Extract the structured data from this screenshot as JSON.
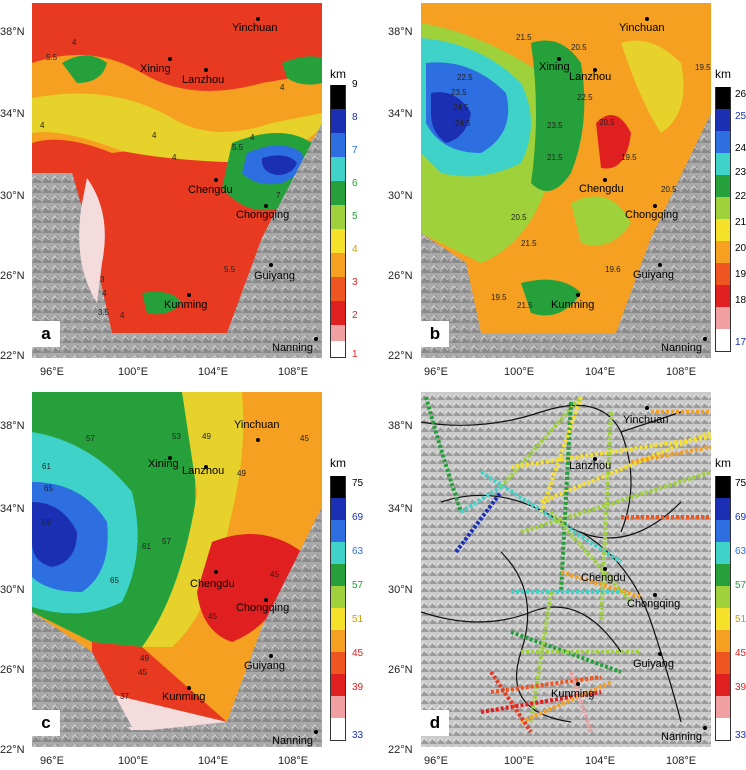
{
  "lat_labels": [
    "38°N",
    "34°N",
    "30°N",
    "26°N",
    "22°N"
  ],
  "lon_labels": [
    "96°E",
    "100°E",
    "104°E",
    "108°E"
  ],
  "colors": {
    "relief_light": "#c8c8c8",
    "relief_dark": "#6e6e6e",
    "white": "#ffffff"
  },
  "panels": [
    {
      "id": "a",
      "letter": "a",
      "unit": "km",
      "cities": [
        "Yinchuan",
        "Xining",
        "Lanzhou",
        "Chengdu",
        "Chongqing",
        "Kunming",
        "Guiyang",
        "Nanning"
      ],
      "contour_labels": [
        "4",
        "5.5",
        "4",
        "4",
        "4",
        "4",
        "5.5",
        "4",
        "7",
        "4",
        "3",
        "5.5",
        "3.5",
        "4"
      ],
      "colorbar": {
        "ticks": [
          "9",
          "8",
          "7",
          "6",
          "5",
          "4",
          "3",
          "2",
          "1"
        ],
        "colors": [
          "#000000",
          "#1a2fb3",
          "#2d6ee0",
          "#3fd2c8",
          "#25a03a",
          "#9fd23a",
          "#f5e02a",
          "#f5a020",
          "#ee5520",
          "#e02020",
          "#f0a0a0",
          "#ffffff"
        ]
      }
    },
    {
      "id": "b",
      "letter": "b",
      "unit": "km",
      "cities": [
        "Yinchuan",
        "Xining",
        "Lanzhou",
        "Chengdu",
        "Chongqing",
        "Kunming",
        "Guiyang",
        "Nanning"
      ],
      "contour_labels": [
        "21.5",
        "20.5",
        "22.5",
        "23.5",
        "24.5",
        "24.5",
        "22.5",
        "19.5",
        "23.5",
        "20.5",
        "21.5",
        "19.5",
        "20.5",
        "21.5",
        "20.5",
        "19.6",
        "21.5",
        "19.5"
      ],
      "colorbar": {
        "ticks": [
          "26",
          "25",
          "24",
          "23",
          "22",
          "21",
          "20",
          "19",
          "18",
          "17"
        ],
        "colors": [
          "#000000",
          "#1a2fb3",
          "#2d6ee0",
          "#3fd2c8",
          "#25a03a",
          "#9fd23a",
          "#f5e02a",
          "#f5a020",
          "#ee5520",
          "#e02020",
          "#f0a0a0",
          "#ffffff"
        ]
      }
    },
    {
      "id": "c",
      "letter": "c",
      "unit": "km",
      "cities": [
        "Yinchuan",
        "Xining",
        "Lanzhou",
        "Chengdu",
        "Chongqing",
        "Kunming",
        "Guiyang",
        "Nanning"
      ],
      "contour_labels": [
        "57",
        "53",
        "49",
        "45",
        "61",
        "65",
        "69",
        "61",
        "57",
        "49",
        "45",
        "65",
        "45",
        "49",
        "45",
        "37"
      ],
      "colorbar": {
        "ticks": [
          "75",
          "69",
          "63",
          "57",
          "51",
          "45",
          "39",
          "33"
        ],
        "colors": [
          "#000000",
          "#1a2fb3",
          "#2d6ee0",
          "#3fd2c8",
          "#25a03a",
          "#9fd23a",
          "#f5e02a",
          "#f5a020",
          "#ee5520",
          "#e02020",
          "#f0a0a0",
          "#ffffff"
        ]
      }
    },
    {
      "id": "d",
      "letter": "d",
      "unit": "km",
      "cities": [
        "Yinchuan",
        "Lanzhou",
        "Chengdu",
        "Chongqing",
        "Kunming",
        "Guiyang",
        "Nanning"
      ],
      "colorbar": {
        "ticks": [
          "75",
          "69",
          "63",
          "57",
          "51",
          "45",
          "39",
          "33"
        ],
        "colors": [
          "#000000",
          "#1a2fb3",
          "#2d6ee0",
          "#3fd2c8",
          "#25a03a",
          "#9fd23a",
          "#f5e02a",
          "#f5a020",
          "#ee5520",
          "#e02020",
          "#f0a0a0",
          "#ffffff"
        ]
      }
    }
  ]
}
